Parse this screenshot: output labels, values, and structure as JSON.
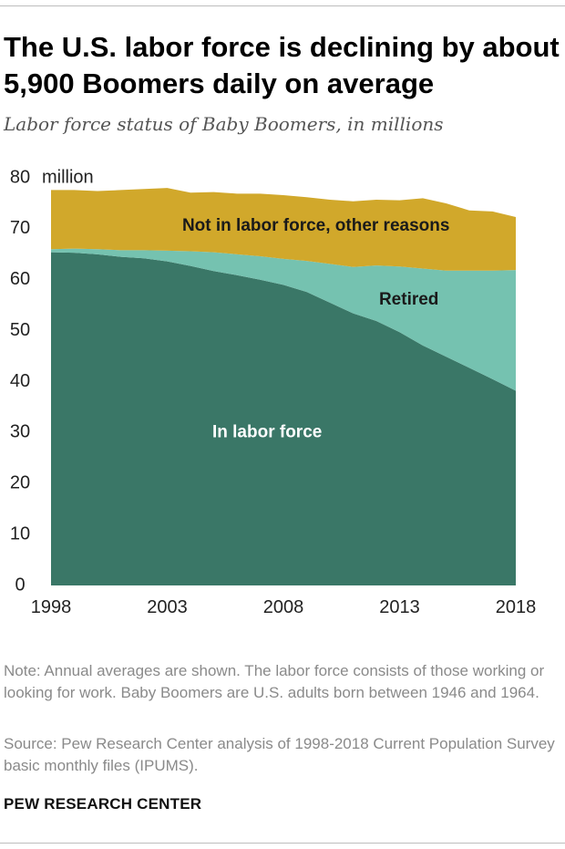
{
  "header": {
    "title": "The U.S. labor force is declining by about 5,900 Boomers daily on average",
    "subtitle": "Labor force status of Baby Boomers, in millions"
  },
  "footer": {
    "note": "Note: Annual averages are shown. The labor force consists of those working or looking for work. Baby Boomers are U.S. adults born between 1946 and 1964.",
    "source": "Source: Pew Research Center analysis of 1998-2018 Current Population Survey basic monthly files (IPUMS).",
    "brand": "PEW RESEARCH CENTER"
  },
  "chart_data": {
    "type": "area",
    "stacked": true,
    "title": "The U.S. labor force is declining by about 5,900 Boomers daily on average",
    "subtitle": "Labor force status of Baby Boomers, in millions",
    "unit_label": "million",
    "x": [
      1998,
      1999,
      2000,
      2001,
      2002,
      2003,
      2004,
      2005,
      2006,
      2007,
      2008,
      2009,
      2010,
      2011,
      2012,
      2013,
      2014,
      2015,
      2016,
      2017,
      2018
    ],
    "x_ticks": [
      1998,
      2003,
      2008,
      2013,
      2018
    ],
    "y_ticks": [
      0,
      10,
      20,
      30,
      40,
      50,
      60,
      70,
      80
    ],
    "ylim": [
      0,
      80
    ],
    "xlim": [
      1998,
      2018
    ],
    "grid": false,
    "legend": "inline labels",
    "series": [
      {
        "name": "In labor force",
        "color": "#3a7767",
        "label_color": "#ffffff",
        "values": [
          65.4,
          65.3,
          65.0,
          64.5,
          64.2,
          63.6,
          62.7,
          61.7,
          60.9,
          60.0,
          59.0,
          57.6,
          55.5,
          53.4,
          51.9,
          49.7,
          47.1,
          44.9,
          42.7,
          40.5,
          38.2
        ]
      },
      {
        "name": "Retired",
        "color": "#75c2b0",
        "label_color": "#1a1a1a",
        "values": [
          0.6,
          0.8,
          1.0,
          1.3,
          1.6,
          2.1,
          2.9,
          3.7,
          4.1,
          4.6,
          5.1,
          6.1,
          7.6,
          9.1,
          10.9,
          12.9,
          15.1,
          16.9,
          19.1,
          21.3,
          23.7
        ]
      },
      {
        "name": "Not in labor force, other reasons",
        "color": "#d1a82b",
        "label_color": "#1a1a1a",
        "values": [
          11.6,
          11.5,
          11.4,
          11.8,
          12.0,
          12.3,
          11.5,
          11.8,
          11.9,
          12.3,
          12.5,
          12.5,
          12.6,
          12.9,
          12.9,
          13.0,
          13.8,
          13.2,
          11.8,
          11.6,
          10.4
        ]
      }
    ]
  }
}
